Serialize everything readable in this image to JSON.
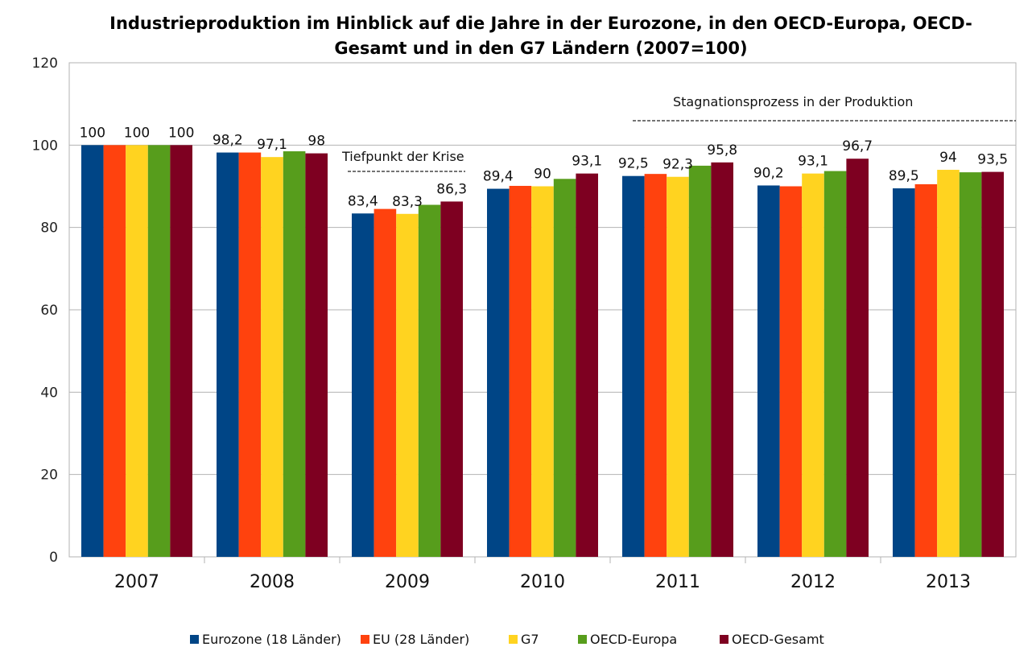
{
  "chart_data": {
    "type": "bar",
    "title_line1": "Industrieproduktion im Hinblick auf die Jahre in der Eurozone, in den OECD-Europa, OECD-",
    "title_line2": "Gesamt und in den G7 Ländern (2007=100)",
    "xlabel": "",
    "ylabel": "",
    "ylim": [
      0,
      120
    ],
    "yticks": [
      "0",
      "20",
      "40",
      "60",
      "80",
      "100",
      "120"
    ],
    "grid": true,
    "legend_position": "bottom",
    "categories": [
      "2007",
      "2008",
      "2009",
      "2010",
      "2011",
      "2012",
      "2013"
    ],
    "series": [
      {
        "name": "Eurozone (18 Länder)",
        "color": "#004586",
        "values": [
          100,
          98.2,
          83.4,
          89.4,
          92.5,
          90.2,
          89.5
        ],
        "labels": [
          "100",
          "98,2",
          "83,4",
          "89,4",
          "92,5",
          "90,2",
          "89,5"
        ]
      },
      {
        "name": "EU (28 Länder)",
        "color": "#ff420e",
        "values": [
          100,
          98.2,
          84.5,
          90.1,
          93,
          90,
          90.5
        ],
        "labels": [
          "",
          "",
          "",
          "",
          "",
          "",
          ""
        ]
      },
      {
        "name": "G7",
        "color": "#ffd320",
        "values": [
          100,
          97.1,
          83.3,
          90,
          92.3,
          93.1,
          94
        ],
        "labels": [
          "100",
          "97,1",
          "83,3",
          "90",
          "92,3",
          "93,1",
          "94"
        ]
      },
      {
        "name": "OECD-Europa",
        "color": "#579d1c",
        "values": [
          100,
          98.5,
          85.5,
          91.8,
          95,
          93.7,
          93.4
        ],
        "labels": [
          "",
          "",
          "",
          "",
          "",
          "",
          ""
        ]
      },
      {
        "name": "OECD-Gesamt",
        "color": "#7e0021",
        "values": [
          100,
          98,
          86.3,
          93.1,
          95.8,
          96.7,
          93.5
        ],
        "labels": [
          "100",
          "98",
          "86,3",
          "93,1",
          "95,8",
          "96,7",
          "93,5"
        ]
      }
    ],
    "annotations": [
      {
        "text": "Tiefpunkt der Krise"
      },
      {
        "text": "Stagnationsprozess in der Produktion"
      }
    ]
  }
}
